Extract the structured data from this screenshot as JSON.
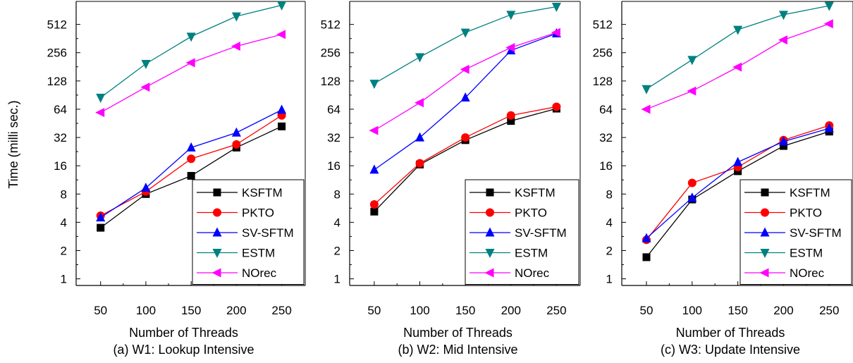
{
  "chart_data": [
    {
      "type": "line",
      "caption": "(a) W1: Lookup Intensive",
      "xlabel": "Number of Threads",
      "ylabel": "Time (milli sec.)",
      "log_scale_y": true,
      "ylim": [
        0.85,
        900
      ],
      "yticks": [
        1,
        2,
        4,
        8,
        16,
        32,
        64,
        128,
        256,
        512
      ],
      "ytick_labels": [
        "1",
        "2",
        "4",
        "8",
        "16",
        "32",
        "64",
        "128",
        "256",
        "512"
      ],
      "x": [
        50,
        100,
        150,
        200,
        250
      ],
      "xtick_labels": [
        "50",
        "100",
        "150",
        "200",
        "250"
      ],
      "legend_position": "bottom-right",
      "series": [
        {
          "name": "KSFTM",
          "values": [
            3.5,
            8,
            12.5,
            25,
            42
          ]
        },
        {
          "name": "PKTO",
          "values": [
            4.7,
            8.5,
            19,
            27,
            55
          ]
        },
        {
          "name": "SV-SFTM",
          "values": [
            4.5,
            9.3,
            25,
            36,
            63
          ]
        },
        {
          "name": "ESTM",
          "values": [
            85,
            195,
            380,
            625,
            820
          ]
        },
        {
          "name": "NOrec",
          "values": [
            59,
            110,
            200,
            300,
            400
          ]
        }
      ]
    },
    {
      "type": "line",
      "caption": "(b) W2: Mid Intensive",
      "xlabel": "Number of Threads",
      "ylabel": "",
      "log_scale_y": true,
      "ylim": [
        0.85,
        900
      ],
      "yticks": [
        1,
        2,
        4,
        8,
        16,
        32,
        64,
        128,
        256,
        512
      ],
      "ytick_labels": [
        "1",
        "2",
        "4",
        "8",
        "16",
        "32",
        "64",
        "128",
        "256",
        "512"
      ],
      "x": [
        50,
        100,
        150,
        200,
        250
      ],
      "xtick_labels": [
        "50",
        "100",
        "150",
        "200",
        "250"
      ],
      "legend_position": "bottom-right",
      "series": [
        {
          "name": "KSFTM",
          "values": [
            5.2,
            16.5,
            30,
            48,
            65
          ]
        },
        {
          "name": "PKTO",
          "values": [
            6.2,
            17,
            32,
            55,
            68
          ]
        },
        {
          "name": "SV-SFTM",
          "values": [
            14.5,
            32,
            85,
            270,
            410
          ]
        },
        {
          "name": "ESTM",
          "values": [
            120,
            230,
            420,
            650,
            790
          ]
        },
        {
          "name": "NOrec",
          "values": [
            38,
            75,
            170,
            290,
            420
          ]
        }
      ]
    },
    {
      "type": "line",
      "caption": "(c) W3: Update Intensive",
      "xlabel": "Number of Threads",
      "ylabel": "",
      "log_scale_y": true,
      "ylim": [
        0.85,
        900
      ],
      "yticks": [
        1,
        2,
        4,
        8,
        16,
        32,
        64,
        128,
        256,
        512
      ],
      "ytick_labels": [
        "1",
        "2",
        "4",
        "8",
        "16",
        "32",
        "64",
        "128",
        "256",
        "512"
      ],
      "x": [
        50,
        100,
        150,
        200,
        250
      ],
      "xtick_labels": [
        "50",
        "100",
        "150",
        "200",
        "250"
      ],
      "legend_position": "bottom-right",
      "series": [
        {
          "name": "KSFTM",
          "values": [
            1.7,
            7,
            14,
            26,
            37
          ]
        },
        {
          "name": "PKTO",
          "values": [
            2.6,
            10.5,
            15.5,
            30,
            43
          ]
        },
        {
          "name": "SV-SFTM",
          "values": [
            2.7,
            7.3,
            17.5,
            29,
            40
          ]
        },
        {
          "name": "ESTM",
          "values": [
            105,
            215,
            450,
            650,
            810
          ]
        },
        {
          "name": "NOrec",
          "values": [
            64,
            100,
            180,
            350,
            520
          ]
        }
      ]
    }
  ],
  "styles": {
    "KSFTM": {
      "color": "#000000",
      "marker": "square"
    },
    "PKTO": {
      "color": "#ff0000",
      "marker": "circle"
    },
    "SV-SFTM": {
      "color": "#0000ff",
      "marker": "triangle-up"
    },
    "ESTM": {
      "color": "#008080",
      "marker": "triangle-down"
    },
    "NOrec": {
      "color": "#ff00ff",
      "marker": "triangle-left"
    }
  }
}
